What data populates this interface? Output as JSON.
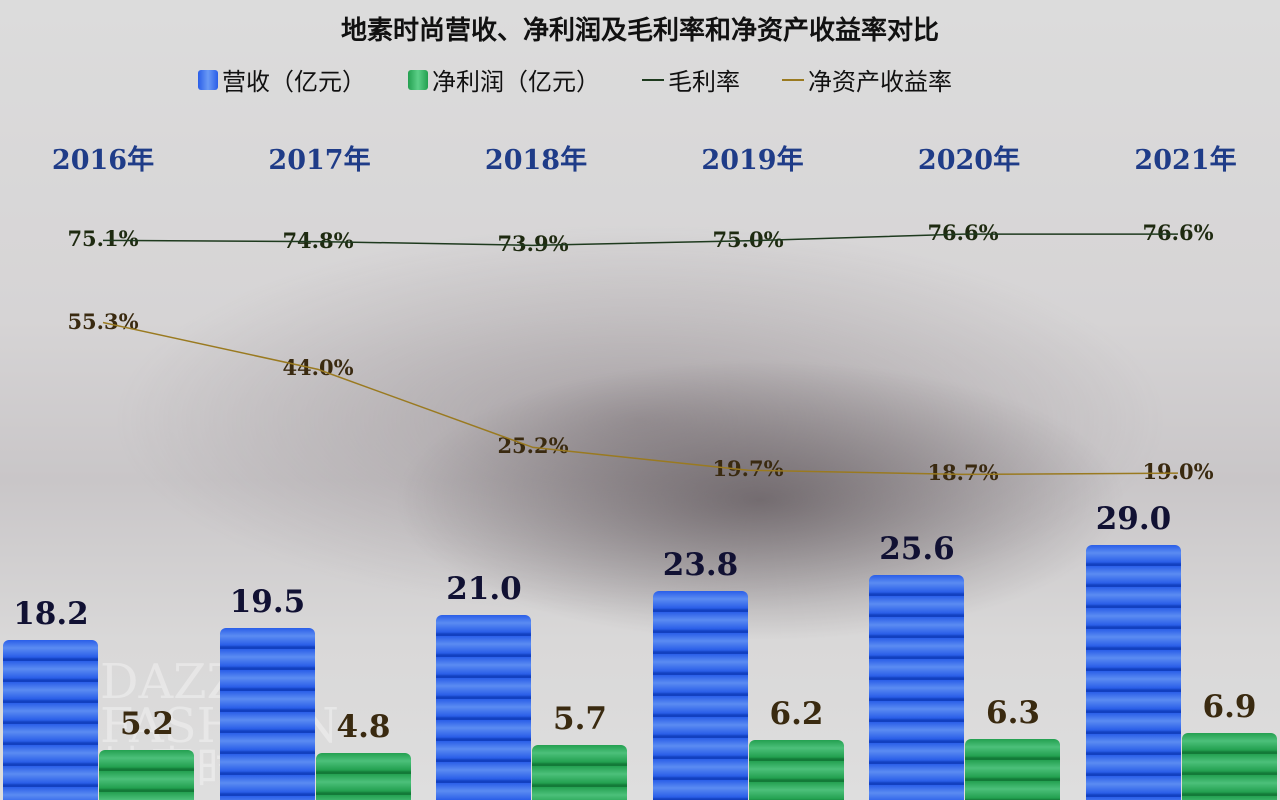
{
  "chart_data": {
    "type": "bar+line",
    "title": "地素时尚营收、净利润及毛利率和净资产收益率对比",
    "categories": [
      "2016年",
      "2017年",
      "2018年",
      "2019年",
      "2020年",
      "2021年"
    ],
    "series": [
      {
        "name": "营收（亿元）",
        "type": "bar",
        "color": "#2a5ee8",
        "values": [
          18.2,
          19.5,
          21.0,
          23.8,
          25.6,
          29.0
        ],
        "labels": [
          "18.2",
          "19.5",
          "21.0",
          "23.8",
          "25.6",
          "29.0"
        ]
      },
      {
        "name": "净利润（亿元）",
        "type": "bar",
        "color": "#23a050",
        "values": [
          5.2,
          4.8,
          5.7,
          6.2,
          6.3,
          6.9
        ],
        "labels": [
          "5.2",
          "4.8",
          "5.7",
          "6.2",
          "6.3",
          "6.9"
        ]
      },
      {
        "name": "毛利率",
        "type": "line",
        "color": "#1e3a1e",
        "values": [
          75.1,
          74.8,
          73.9,
          75.0,
          76.6,
          76.6
        ],
        "labels": [
          "75.1%",
          "74.8%",
          "73.9%",
          "75.0%",
          "76.6%",
          "76.6%"
        ]
      },
      {
        "name": "净资产收益率",
        "type": "line",
        "color": "#9a7a20",
        "values": [
          55.3,
          44.0,
          25.2,
          19.7,
          18.7,
          19.0
        ],
        "labels": [
          "55.3%",
          "44.0%",
          "25.2%",
          "19.7%",
          "18.7%",
          "19.0%"
        ]
      }
    ],
    "legend_position": "top",
    "grid": false
  },
  "watermark": [
    "DAZZLE",
    "FASHION",
    "地素时尚"
  ],
  "colors": {
    "year_label": "#1f3c88",
    "bar_label": "#111133",
    "np_label": "#3a2a10",
    "gm_label": "#1e2a10",
    "roe_label": "#3a2a10"
  }
}
